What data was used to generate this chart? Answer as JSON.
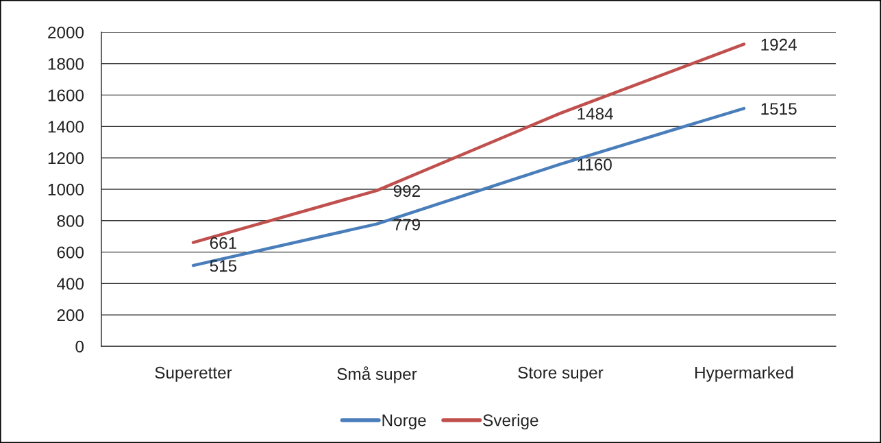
{
  "chart_data": {
    "type": "line",
    "categories": [
      "Superetter",
      "Små super",
      "Store super",
      "Hypermarked"
    ],
    "series": [
      {
        "name": "Norge",
        "color": "#4a7ebb",
        "values": [
          515,
          779,
          1160,
          1515
        ]
      },
      {
        "name": "Sverige",
        "color": "#c0504d",
        "values": [
          661,
          992,
          1484,
          1924
        ]
      }
    ],
    "ylim": [
      0,
      2000
    ],
    "yticks": [
      0,
      200,
      400,
      600,
      800,
      1000,
      1200,
      1400,
      1600,
      1800,
      2000
    ],
    "grid": "y",
    "legend": "bottom",
    "data_labels": true,
    "line_style": "solid"
  }
}
